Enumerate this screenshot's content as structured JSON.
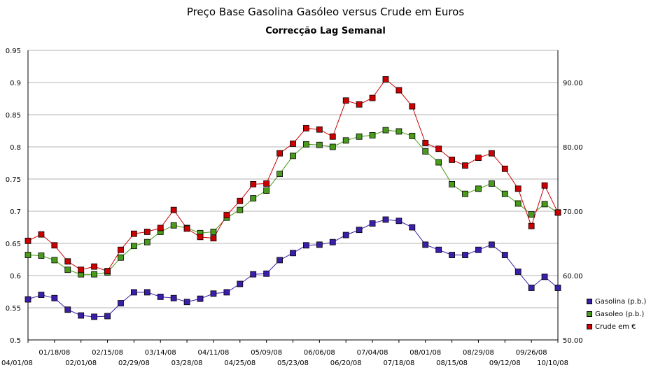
{
  "chart_data": {
    "type": "line",
    "title": "Preço Base Gasolina Gasóleo versus Crude em Euros",
    "subtitle": "Correcção Lag Semanal",
    "xlabel": "",
    "ylabel": "",
    "ylim": [
      0.5,
      0.95
    ],
    "y2lim": [
      50.0,
      95.0
    ],
    "left_ticks": [
      "0.5",
      "0.55",
      "0.6",
      "0.65",
      "0.7",
      "0.75",
      "0.8",
      "0.85",
      "0.9",
      "0.95"
    ],
    "right_ticks": [
      "50.00",
      "60.00",
      "70.00",
      "80.00",
      "90.00"
    ],
    "x_labels": [
      "04/01/08",
      "01/18/08",
      "02/01/08",
      "02/15/08",
      "02/29/08",
      "03/14/08",
      "03/28/08",
      "04/11/08",
      "04/25/08",
      "05/09/08",
      "05/23/08",
      "06/06/08",
      "06/20/08",
      "07/04/08",
      "07/18/08",
      "08/01/08",
      "08/15/08",
      "08/29/08",
      "09/12/08",
      "09/26/08",
      "10/10/08"
    ],
    "series": [
      {
        "name": "Gasolina (p.b.)",
        "axis": "left",
        "color": "#3b1fa8",
        "values": [
          0.563,
          0.57,
          0.565,
          0.547,
          0.538,
          0.536,
          0.537,
          0.557,
          0.574,
          0.574,
          0.567,
          0.565,
          0.559,
          0.564,
          0.572,
          0.574,
          0.587,
          0.602,
          0.603,
          0.624,
          0.635,
          0.647,
          0.648,
          0.652,
          0.663,
          0.671,
          0.681,
          0.687,
          0.685,
          0.675,
          0.648,
          0.64,
          0.632,
          0.632,
          0.64,
          0.648,
          0.632,
          0.606,
          0.581,
          0.598,
          0.581
        ]
      },
      {
        "name": "Gasoleo (p.b.)",
        "axis": "left",
        "color": "#4a9a1c",
        "values": [
          0.632,
          0.631,
          0.624,
          0.609,
          0.602,
          0.602,
          0.605,
          0.628,
          0.646,
          0.652,
          0.668,
          0.678,
          0.674,
          0.666,
          0.668,
          0.69,
          0.702,
          0.72,
          0.732,
          0.758,
          0.786,
          0.804,
          0.803,
          0.8,
          0.81,
          0.816,
          0.818,
          0.826,
          0.824,
          0.817,
          0.793,
          0.776,
          0.742,
          0.727,
          0.735,
          0.743,
          0.727,
          0.712,
          0.695,
          0.711,
          0.698
        ]
      },
      {
        "name": "Crude em €",
        "axis": "right",
        "color": "#cc0000",
        "values": [
          65.4,
          66.4,
          64.7,
          62.2,
          60.9,
          61.4,
          60.7,
          64.0,
          66.5,
          66.8,
          67.4,
          70.2,
          67.3,
          66.0,
          65.8,
          69.4,
          71.6,
          74.2,
          74.3,
          79.0,
          80.5,
          82.9,
          82.7,
          81.6,
          87.2,
          86.6,
          87.6,
          90.5,
          88.8,
          86.3,
          80.6,
          79.7,
          78.0,
          77.1,
          78.3,
          79.0,
          76.6,
          73.5,
          67.7,
          74.0,
          69.8
        ]
      }
    ],
    "legend_position": "right",
    "grid": true
  }
}
